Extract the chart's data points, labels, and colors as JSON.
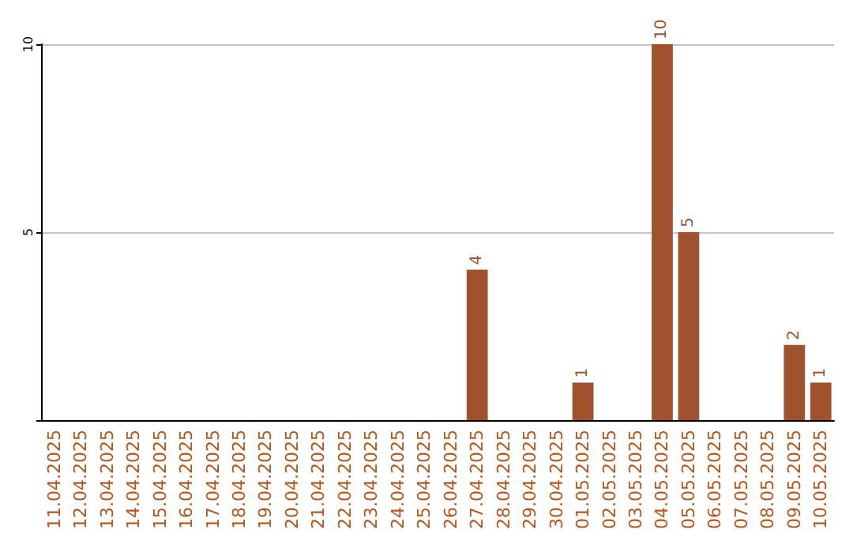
{
  "chart_data": {
    "type": "bar",
    "categories": [
      "11.04.2025",
      "12.04.2025",
      "13.04.2025",
      "14.04.2025",
      "15.04.2025",
      "16.04.2025",
      "17.04.2025",
      "18.04.2025",
      "19.04.2025",
      "20.04.2025",
      "21.04.2025",
      "22.04.2025",
      "23.04.2025",
      "24.04.2025",
      "25.04.2025",
      "26.04.2025",
      "27.04.2025",
      "28.04.2025",
      "29.04.2025",
      "30.04.2025",
      "01.05.2025",
      "02.05.2025",
      "03.05.2025",
      "04.05.2025",
      "05.05.2025",
      "06.05.2025",
      "07.05.2025",
      "08.05.2025",
      "09.05.2025",
      "10.05.2025"
    ],
    "values": [
      0,
      0,
      0,
      0,
      0,
      0,
      0,
      0,
      0,
      0,
      0,
      0,
      0,
      0,
      0,
      0,
      4,
      0,
      0,
      0,
      1,
      0,
      0,
      10,
      5,
      0,
      0,
      0,
      2,
      1
    ],
    "value_labels": [
      null,
      null,
      null,
      null,
      null,
      null,
      null,
      null,
      null,
      null,
      null,
      null,
      null,
      null,
      null,
      null,
      "4",
      null,
      null,
      null,
      "1",
      null,
      null,
      "10",
      "5",
      null,
      null,
      null,
      "2",
      "1"
    ],
    "color": "#a0522d",
    "ylim": [
      0,
      10
    ],
    "yticks": [
      {
        "value": 0,
        "label": null
      },
      5,
      10
    ],
    "grid": "y"
  }
}
